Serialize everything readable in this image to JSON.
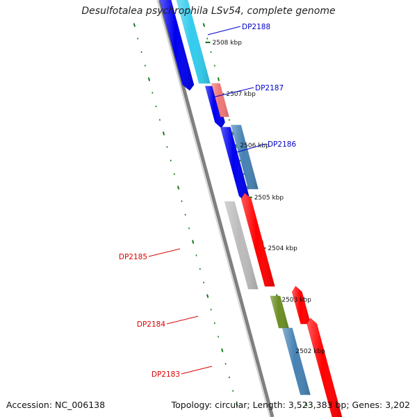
{
  "title": "Desulfotalea psychrophila LSv54, complete genome",
  "accession": "Accession: NC_006138",
  "summary": "Topology: circular; Length: 3,523,383 bp; Genes: 3,202",
  "colors": {
    "backbone": "#808080",
    "tick_green": "#1a7a1a",
    "label_forward": "#0000c8",
    "label_reverse": "#dd0000"
  },
  "tick_labels": [
    "2508 kbp",
    "2507 kbp",
    "2506 kbp",
    "2505 kbp",
    "2504 kbp",
    "2503 kbp",
    "2502 kbp"
  ],
  "genes": [
    {
      "id": "DP2188",
      "strand": "forward"
    },
    {
      "id": "DP2187",
      "strand": "forward"
    },
    {
      "id": "DP2186",
      "strand": "forward"
    },
    {
      "id": "DP2185",
      "strand": "reverse"
    },
    {
      "id": "DP2184",
      "strand": "reverse"
    },
    {
      "id": "DP2183",
      "strand": "reverse"
    }
  ],
  "features": [
    {
      "track": "cds",
      "color": "#0000ee",
      "direction": "down",
      "label": null
    },
    {
      "track": "cds",
      "color": "#0000ee",
      "direction": "down",
      "label": null
    },
    {
      "track": "cds",
      "color": "#0000ee",
      "direction": "down",
      "label": null
    },
    {
      "track": "cog",
      "color": "#33ccee",
      "label": "DP2188"
    },
    {
      "track": "cog",
      "color": "#ee7777",
      "label": "DP2187"
    },
    {
      "track": "cog",
      "color": "#4682b4",
      "label": "DP2186"
    },
    {
      "track": "cds",
      "color": "#ff0000",
      "direction": "up",
      "label": null
    },
    {
      "track": "cds",
      "color": "#ff0000",
      "direction": "up",
      "label": null
    },
    {
      "track": "cds",
      "color": "#ff0000",
      "direction": "up",
      "label": null
    },
    {
      "track": "cog",
      "color": "#bbbbbb",
      "label": "DP2185"
    },
    {
      "track": "cog",
      "color": "#6b8e23",
      "label": "DP2184"
    },
    {
      "track": "cog",
      "color": "#4682b4",
      "label": "DP2183"
    }
  ]
}
